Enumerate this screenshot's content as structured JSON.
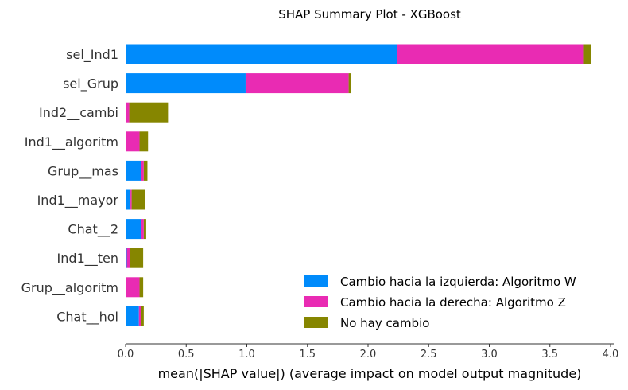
{
  "chart_data": {
    "type": "bar",
    "orientation": "horizontal",
    "stacked": true,
    "title": "SHAP Summary Plot - XGBoost",
    "xlabel": "mean(|SHAP value|) (average impact on model output magnitude)",
    "ylabel": "",
    "xlim": [
      0,
      4.0
    ],
    "xticks": [
      "0.0",
      "0.5",
      "1.0",
      "1.5",
      "2.0",
      "2.5",
      "3.0",
      "3.5",
      "4.0"
    ],
    "grid": false,
    "legend_position": "bottom-right",
    "categories": [
      "sel_Ind1",
      "sel_Grup",
      "Ind2__cambi",
      "Ind1__algoritm",
      "Grup__mas",
      "Ind1__mayor",
      "Chat__2",
      "Ind1__ten",
      "Grup__algoritm",
      "Chat__hol"
    ],
    "series": [
      {
        "name": "Cambio hacia la izquierda: Algoritmo W",
        "color": "#008bfb",
        "values": [
          2.24,
          0.99,
          0.005,
          0.005,
          0.13,
          0.04,
          0.13,
          0.01,
          0.005,
          0.11
        ]
      },
      {
        "name": "Cambio hacia la derecha: Algoritmo Z",
        "color": "#e92bb3",
        "values": [
          1.54,
          0.85,
          0.025,
          0.11,
          0.02,
          0.01,
          0.02,
          0.025,
          0.11,
          0.02
        ]
      },
      {
        "name": "No hay cambio",
        "color": "#868600",
        "values": [
          0.06,
          0.02,
          0.32,
          0.07,
          0.03,
          0.11,
          0.02,
          0.11,
          0.03,
          0.02
        ]
      }
    ]
  }
}
